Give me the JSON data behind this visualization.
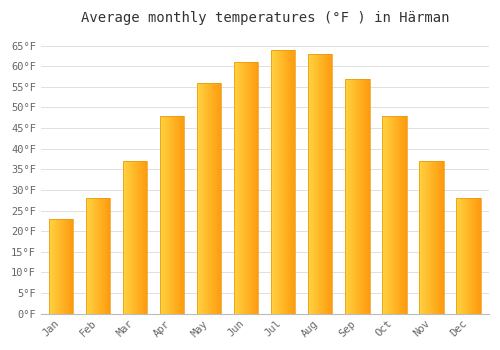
{
  "months": [
    "Jan",
    "Feb",
    "Mar",
    "Apr",
    "May",
    "Jun",
    "Jul",
    "Aug",
    "Sep",
    "Oct",
    "Nov",
    "Dec"
  ],
  "values": [
    23,
    28,
    37,
    48,
    56,
    61,
    64,
    63,
    57,
    48,
    37,
    28
  ],
  "bar_color_left": "#FFB733",
  "bar_color_right": "#FF9500",
  "bar_edge_color": "#E8960A",
  "title": "Average monthly temperatures (°F ) in Härman",
  "ylim": [
    0,
    68
  ],
  "ytick_step": 5,
  "background_color": "#ffffff",
  "plot_bg_color": "#f8f8f8",
  "grid_color": "#e0e0e0",
  "title_fontsize": 10,
  "tick_fontsize": 7.5,
  "tick_color": "#666666",
  "title_color": "#333333"
}
